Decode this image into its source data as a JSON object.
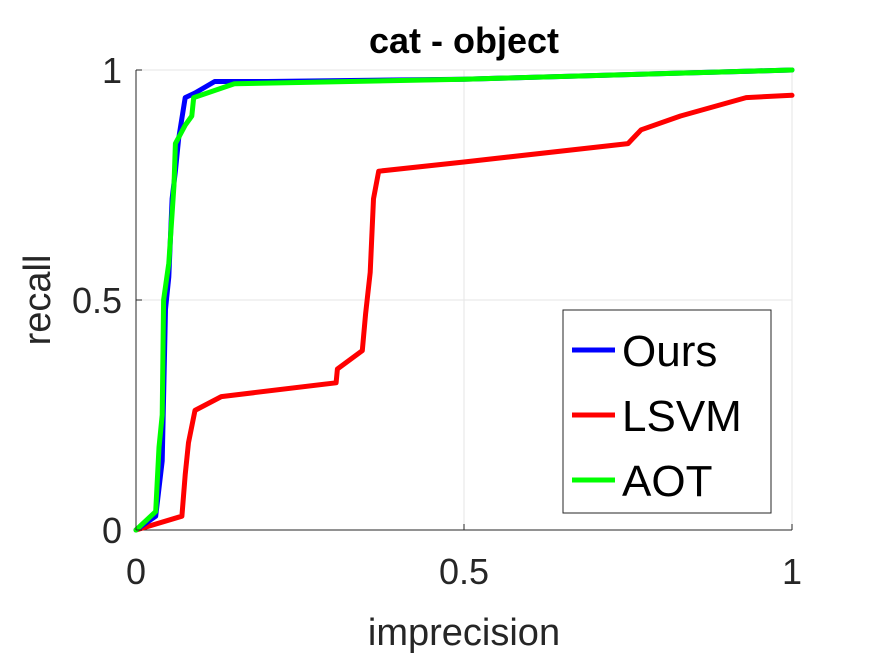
{
  "chart_data": {
    "type": "line",
    "title": "cat - object",
    "xlabel": "imprecision",
    "ylabel": "recall",
    "xlim": [
      0,
      1
    ],
    "ylim": [
      0,
      1
    ],
    "x_ticks": [
      {
        "value": 0,
        "label": "0"
      },
      {
        "value": 0.5,
        "label": "0.5"
      },
      {
        "value": 1,
        "label": "1"
      }
    ],
    "y_ticks": [
      {
        "value": 0,
        "label": "0"
      },
      {
        "value": 0.5,
        "label": "0.5"
      },
      {
        "value": 1,
        "label": "1"
      }
    ],
    "grid": true,
    "legend_position": "bottom-right",
    "series": [
      {
        "name": "Ours",
        "color": "#0000ff",
        "points": [
          [
            0,
            0
          ],
          [
            0.03,
            0.03
          ],
          [
            0.04,
            0.15
          ],
          [
            0.045,
            0.48
          ],
          [
            0.05,
            0.55
          ],
          [
            0.055,
            0.72
          ],
          [
            0.06,
            0.78
          ],
          [
            0.065,
            0.85
          ],
          [
            0.075,
            0.94
          ],
          [
            0.09,
            0.95
          ],
          [
            0.12,
            0.975
          ],
          [
            0.2,
            0.975
          ],
          [
            0.5,
            0.98
          ],
          [
            1,
            1
          ]
        ]
      },
      {
        "name": "LSVM",
        "color": "#ff0000",
        "points": [
          [
            0,
            0
          ],
          [
            0.07,
            0.03
          ],
          [
            0.075,
            0.12
          ],
          [
            0.08,
            0.19
          ],
          [
            0.09,
            0.26
          ],
          [
            0.13,
            0.29
          ],
          [
            0.305,
            0.32
          ],
          [
            0.307,
            0.35
          ],
          [
            0.345,
            0.39
          ],
          [
            0.35,
            0.47
          ],
          [
            0.357,
            0.56
          ],
          [
            0.362,
            0.72
          ],
          [
            0.37,
            0.78
          ],
          [
            0.5,
            0.8
          ],
          [
            0.75,
            0.84
          ],
          [
            0.77,
            0.87
          ],
          [
            0.83,
            0.9
          ],
          [
            0.93,
            0.94
          ],
          [
            1,
            0.945
          ]
        ]
      },
      {
        "name": "AOT",
        "color": "#00ff00",
        "points": [
          [
            0,
            0
          ],
          [
            0.03,
            0.04
          ],
          [
            0.035,
            0.18
          ],
          [
            0.04,
            0.25
          ],
          [
            0.042,
            0.5
          ],
          [
            0.05,
            0.58
          ],
          [
            0.058,
            0.75
          ],
          [
            0.06,
            0.84
          ],
          [
            0.075,
            0.88
          ],
          [
            0.085,
            0.9
          ],
          [
            0.088,
            0.94
          ],
          [
            0.15,
            0.97
          ],
          [
            0.5,
            0.98
          ],
          [
            1,
            1
          ]
        ]
      }
    ]
  }
}
